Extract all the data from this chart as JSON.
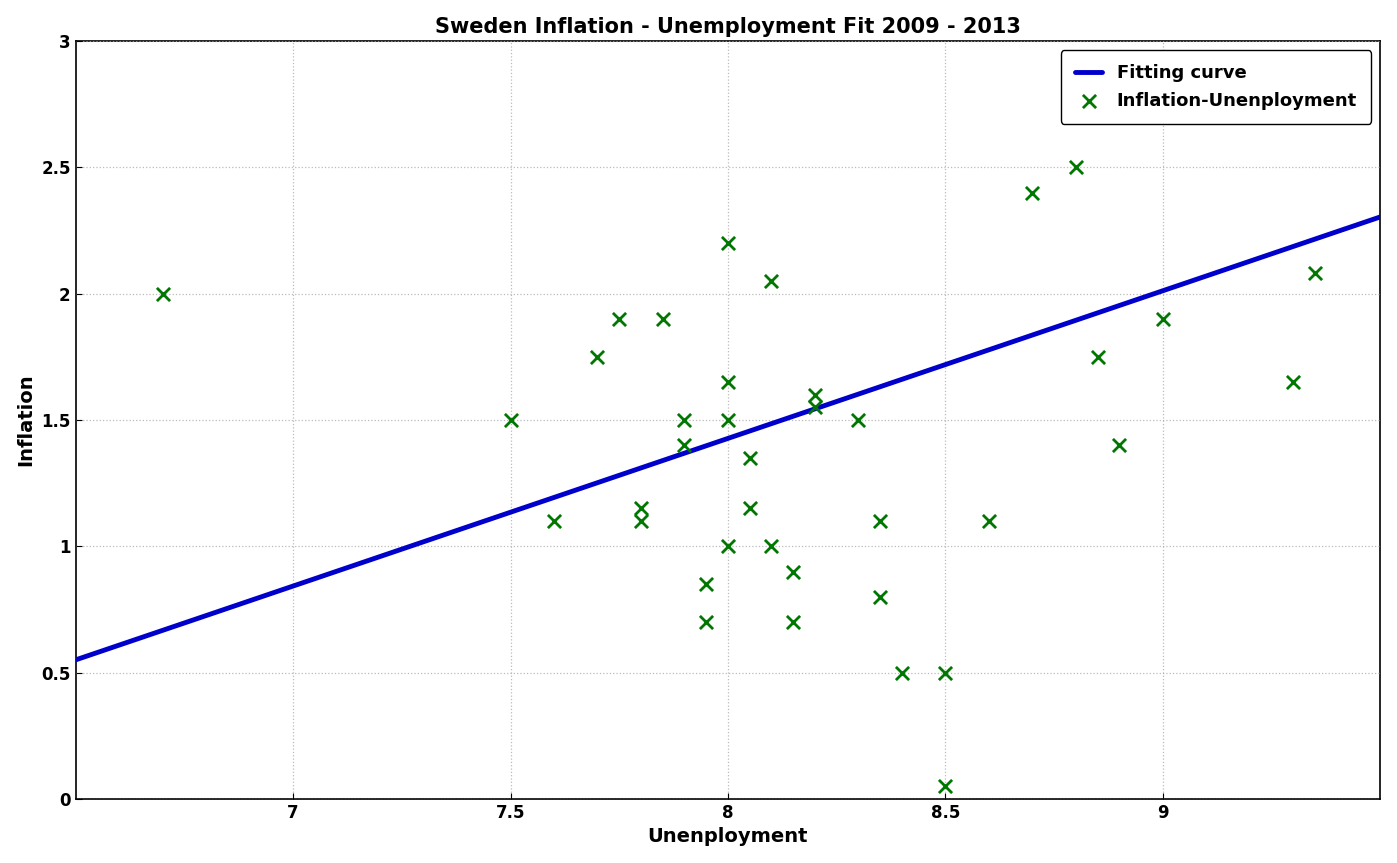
{
  "title": "Sweden Inflation - Unemployment Fit 2009 - 2013",
  "xlabel": "Unenployment",
  "ylabel": "Inflation",
  "xlim": [
    6.5,
    9.5
  ],
  "ylim": [
    0,
    3
  ],
  "xticks": [
    7.0,
    7.5,
    8.0,
    8.5,
    9.0
  ],
  "yticks": [
    0,
    0.5,
    1.0,
    1.5,
    2.0,
    2.5,
    3.0
  ],
  "scatter_color": "#007700",
  "line_color": "#0000CC",
  "line_width": 3.5,
  "marker": "x",
  "marker_size": 90,
  "marker_linewidth": 2.0,
  "p1": 0.5845,
  "p2": -3.249,
  "fit_x": [
    6.5,
    9.5
  ],
  "scatter_x": [
    6.7,
    7.5,
    7.6,
    7.7,
    7.75,
    7.8,
    7.8,
    7.85,
    7.9,
    7.9,
    7.95,
    7.95,
    8.0,
    8.0,
    8.0,
    8.0,
    8.05,
    8.05,
    8.1,
    8.1,
    8.15,
    8.15,
    8.2,
    8.2,
    8.3,
    8.35,
    8.35,
    8.4,
    8.5,
    8.5,
    8.6,
    8.7,
    8.8,
    8.85,
    8.9,
    9.0,
    9.3,
    9.35
  ],
  "scatter_y": [
    2.0,
    1.5,
    1.1,
    1.75,
    1.9,
    1.1,
    1.15,
    1.9,
    1.5,
    1.4,
    0.85,
    0.7,
    2.2,
    1.5,
    1.0,
    1.65,
    1.35,
    1.15,
    2.05,
    1.0,
    0.9,
    0.7,
    1.6,
    1.55,
    1.5,
    1.1,
    0.8,
    0.5,
    0.05,
    0.5,
    1.1,
    2.4,
    2.5,
    1.75,
    1.4,
    1.9,
    1.65,
    2.08
  ],
  "legend_fitting_curve": "Fitting curve",
  "legend_scatter": "Inflation-Unenployment",
  "background_color": "#ffffff",
  "title_fontsize": 15,
  "label_fontsize": 14,
  "tick_fontsize": 12,
  "legend_fontsize": 13,
  "grid_color": "#aaaaaa",
  "grid_alpha": 0.8
}
